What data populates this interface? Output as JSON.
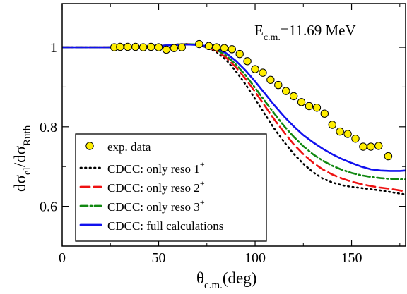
{
  "chart_data": {
    "type": "line",
    "energy_annotation": {
      "prefix": "E",
      "sub": "c.m.",
      "value": "=11.69 MeV"
    },
    "xlabel": {
      "main": "θ",
      "sub": "c.m.",
      "unit": "(deg)"
    },
    "ylabel": {
      "d1": "dσ",
      "sub1": "el",
      "slash": "/dσ",
      "sub2": "Ruth"
    },
    "xlim": [
      0,
      178
    ],
    "ylim": [
      0.5,
      1.11
    ],
    "xticks": [
      {
        "v": 0,
        "label": "0"
      },
      {
        "v": 50,
        "label": "50"
      },
      {
        "v": 100,
        "label": "100"
      },
      {
        "v": 150,
        "label": "150"
      }
    ],
    "yticks": [
      {
        "v": 0.6,
        "label": "0.6"
      },
      {
        "v": 0.8,
        "label": "0.8"
      },
      {
        "v": 1.0,
        "label": "1"
      }
    ],
    "experimental": {
      "name": "exp. data",
      "color": "#ffee00",
      "points": [
        {
          "x": 27,
          "y": 1.0,
          "err": 0.007
        },
        {
          "x": 30,
          "y": 1.001,
          "err": 0.007
        },
        {
          "x": 34,
          "y": 1.001,
          "err": 0.007
        },
        {
          "x": 38,
          "y": 1.001,
          "err": 0.007
        },
        {
          "x": 42,
          "y": 1.0,
          "err": 0.007
        },
        {
          "x": 46,
          "y": 1.001,
          "err": 0.007
        },
        {
          "x": 50,
          "y": 1.0,
          "err": 0.007
        },
        {
          "x": 54,
          "y": 0.994,
          "err": 0.007
        },
        {
          "x": 58,
          "y": 0.998,
          "err": 0.007
        },
        {
          "x": 62,
          "y": 1.0,
          "err": 0.007
        },
        {
          "x": 71,
          "y": 1.008,
          "err": 0.007
        },
        {
          "x": 76,
          "y": 1.003,
          "err": 0.007
        },
        {
          "x": 80,
          "y": 1.0,
          "err": 0.007
        },
        {
          "x": 84,
          "y": 0.998,
          "err": 0.007
        },
        {
          "x": 88,
          "y": 0.995,
          "err": 0.007
        },
        {
          "x": 92,
          "y": 0.983,
          "err": 0.007
        },
        {
          "x": 96,
          "y": 0.965,
          "err": 0.008
        },
        {
          "x": 100,
          "y": 0.945,
          "err": 0.008
        },
        {
          "x": 104,
          "y": 0.936,
          "err": 0.008
        },
        {
          "x": 108,
          "y": 0.918,
          "err": 0.008
        },
        {
          "x": 112,
          "y": 0.905,
          "err": 0.008
        },
        {
          "x": 116,
          "y": 0.89,
          "err": 0.008
        },
        {
          "x": 120,
          "y": 0.877,
          "err": 0.008
        },
        {
          "x": 124,
          "y": 0.862,
          "err": 0.008
        },
        {
          "x": 128,
          "y": 0.852,
          "err": 0.008
        },
        {
          "x": 132,
          "y": 0.848,
          "err": 0.008
        },
        {
          "x": 136,
          "y": 0.833,
          "err": 0.008
        },
        {
          "x": 140,
          "y": 0.805,
          "err": 0.008
        },
        {
          "x": 144,
          "y": 0.788,
          "err": 0.008
        },
        {
          "x": 148,
          "y": 0.782,
          "err": 0.008
        },
        {
          "x": 152,
          "y": 0.77,
          "err": 0.008
        },
        {
          "x": 156,
          "y": 0.75,
          "err": 0.008
        },
        {
          "x": 160,
          "y": 0.75,
          "err": 0.008
        },
        {
          "x": 164,
          "y": 0.752,
          "err": 0.008
        },
        {
          "x": 169,
          "y": 0.726,
          "err": 0.008
        }
      ]
    },
    "series": [
      {
        "name": "CDCC: only reso 1",
        "sup": "+",
        "color": "#000000",
        "dash": "1.5 5",
        "x": [
          0,
          10,
          20,
          30,
          40,
          50,
          55,
          60,
          65,
          70,
          75,
          80,
          85,
          90,
          95,
          100,
          105,
          110,
          115,
          120,
          125,
          130,
          135,
          140,
          145,
          150,
          155,
          160,
          165,
          170,
          175,
          178
        ],
        "y": [
          1.0,
          1.0,
          1.0,
          1.0,
          1.001,
          1.003,
          1.005,
          1.007,
          1.008,
          1.006,
          1.0,
          0.988,
          0.968,
          0.94,
          0.907,
          0.87,
          0.832,
          0.795,
          0.762,
          0.732,
          0.707,
          0.686,
          0.67,
          0.66,
          0.653,
          0.649,
          0.646,
          0.643,
          0.64,
          0.636,
          0.632,
          0.63
        ]
      },
      {
        "name": "CDCC: only reso 2",
        "sup": "+",
        "color": "#ee1111",
        "dash": "13 6",
        "x": [
          0,
          10,
          20,
          30,
          40,
          50,
          55,
          60,
          65,
          70,
          75,
          80,
          85,
          90,
          95,
          100,
          105,
          110,
          115,
          120,
          125,
          130,
          135,
          140,
          145,
          150,
          155,
          160,
          165,
          170,
          175,
          178
        ],
        "y": [
          1.0,
          1.0,
          1.0,
          1.0,
          1.001,
          1.003,
          1.005,
          1.007,
          1.008,
          1.006,
          1.001,
          0.991,
          0.974,
          0.95,
          0.921,
          0.888,
          0.853,
          0.818,
          0.786,
          0.756,
          0.731,
          0.71,
          0.693,
          0.68,
          0.67,
          0.662,
          0.656,
          0.651,
          0.647,
          0.644,
          0.64,
          0.637
        ]
      },
      {
        "name": "CDCC: only reso 3",
        "sup": "+",
        "color": "#118811",
        "dash": "10 4 2 4",
        "x": [
          0,
          10,
          20,
          30,
          40,
          50,
          55,
          60,
          65,
          70,
          75,
          80,
          85,
          90,
          95,
          100,
          105,
          110,
          115,
          120,
          125,
          130,
          135,
          140,
          145,
          150,
          155,
          160,
          165,
          170,
          175,
          178
        ],
        "y": [
          1.0,
          1.0,
          1.0,
          1.0,
          1.001,
          1.003,
          1.005,
          1.007,
          1.008,
          1.007,
          1.002,
          0.994,
          0.979,
          0.957,
          0.93,
          0.898,
          0.865,
          0.833,
          0.802,
          0.775,
          0.751,
          0.731,
          0.715,
          0.702,
          0.692,
          0.684,
          0.678,
          0.674,
          0.671,
          0.669,
          0.668,
          0.668
        ]
      },
      {
        "name": "CDCC: full calculations",
        "sup": "",
        "color": "#1111ee",
        "dash": "",
        "x": [
          0,
          10,
          20,
          30,
          40,
          50,
          55,
          60,
          65,
          70,
          75,
          80,
          85,
          90,
          95,
          100,
          105,
          110,
          115,
          120,
          125,
          130,
          135,
          140,
          145,
          150,
          155,
          160,
          165,
          170,
          175,
          178
        ],
        "y": [
          1.0,
          1.0,
          1.0,
          1.0,
          1.001,
          1.003,
          1.005,
          1.006,
          1.007,
          1.006,
          1.003,
          0.997,
          0.985,
          0.966,
          0.942,
          0.914,
          0.884,
          0.854,
          0.826,
          0.801,
          0.779,
          0.761,
          0.745,
          0.731,
          0.719,
          0.709,
          0.7,
          0.693,
          0.69,
          0.689,
          0.689,
          0.69
        ]
      }
    ],
    "legend_position": "bottom-left",
    "grid": false
  }
}
